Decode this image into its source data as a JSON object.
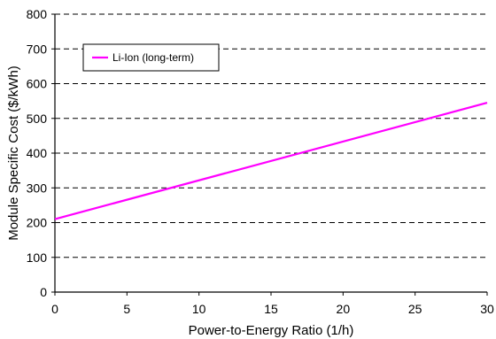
{
  "chart_data": {
    "type": "line",
    "xlabel": "Power-to-Energy Ratio (1/h)",
    "ylabel": "Module Specific Cost ($/kWh)",
    "xlim": [
      0,
      30
    ],
    "ylim": [
      0,
      800
    ],
    "x_ticks": [
      0,
      5,
      10,
      15,
      20,
      25,
      30
    ],
    "y_ticks": [
      0,
      100,
      200,
      300,
      400,
      500,
      600,
      700,
      800
    ],
    "grid": "horizontal-dashed",
    "legend_position": "top-left",
    "series": [
      {
        "name": "Li-Ion (long-term)",
        "color": "#ff00ff",
        "x": [
          0,
          30
        ],
        "y": [
          210,
          545
        ]
      }
    ]
  }
}
